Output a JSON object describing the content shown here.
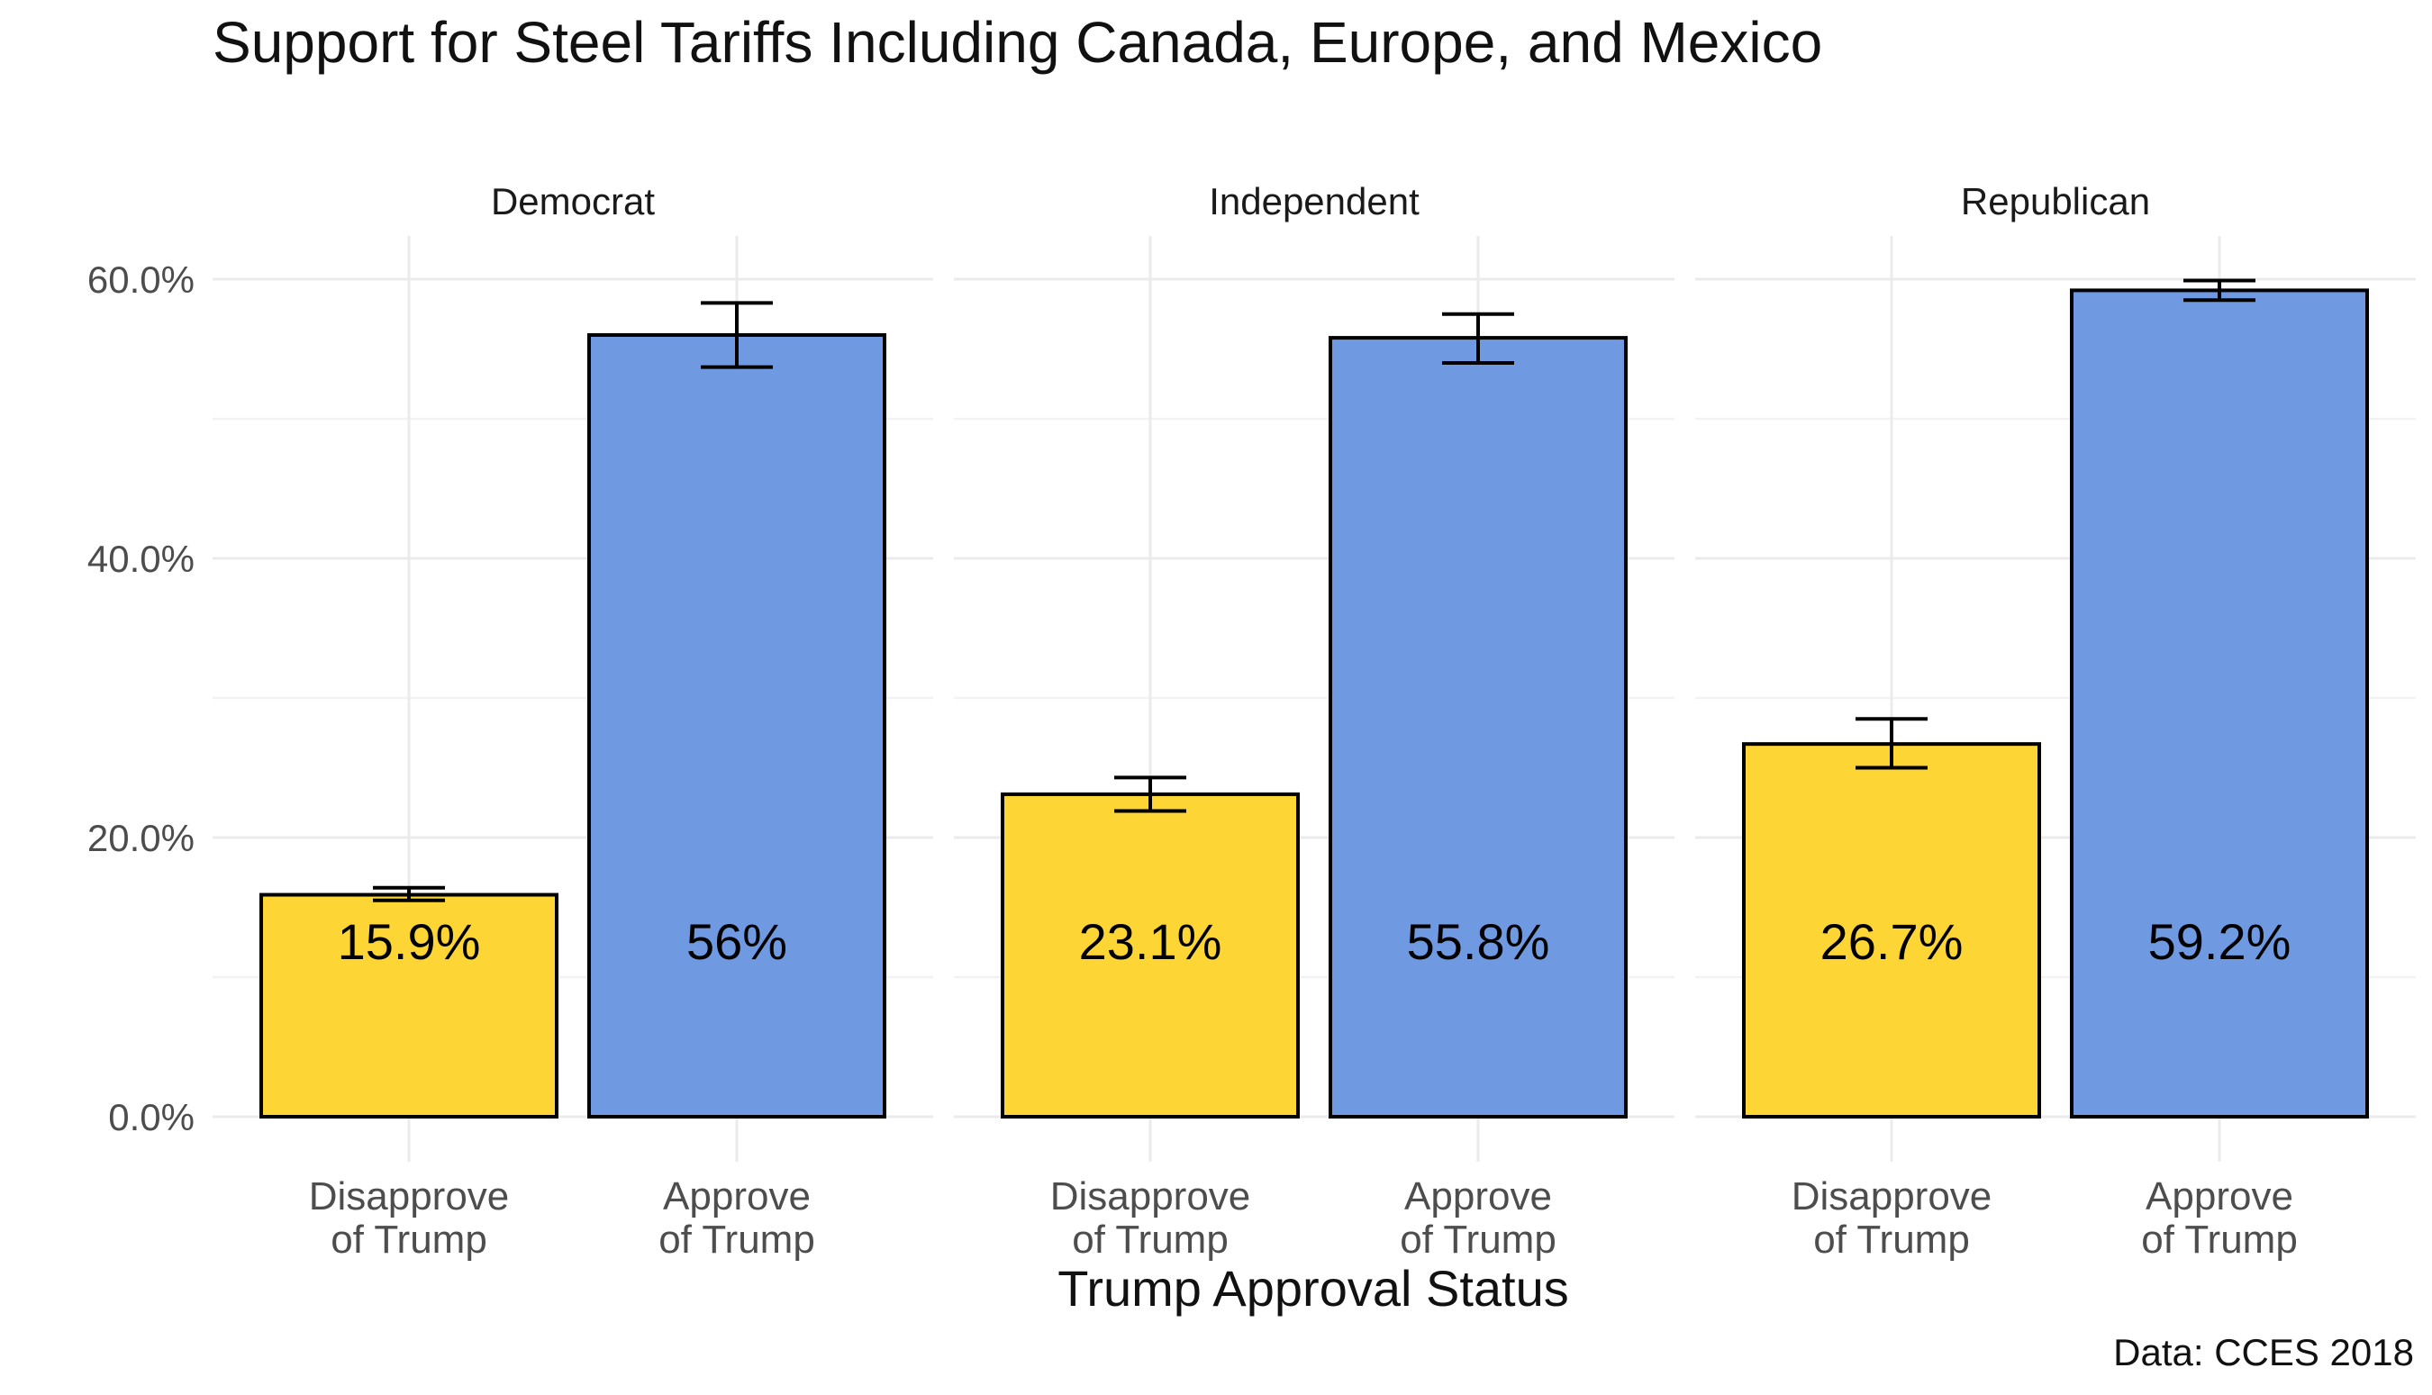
{
  "chart_data": {
    "type": "bar",
    "title": "Support for Steel Tariffs Including Canada, Europe, and Mexico",
    "xlabel": "Trump Approval Status",
    "ylabel": "",
    "caption": "Data: CCES 2018",
    "ylim": [
      0,
      60
    ],
    "y_ticks": [
      0,
      20,
      40,
      60
    ],
    "y_tick_labels": [
      "0.0%",
      "20.0%",
      "40.0%",
      "60.0%"
    ],
    "grid": true,
    "categories": [
      {
        "line1": "Disapprove",
        "line2": "of Trump"
      },
      {
        "line1": "Approve",
        "line2": "of Trump"
      }
    ],
    "colors": [
      "#FDD535",
      "#6F99E0"
    ],
    "facets": [
      {
        "name": "Democrat",
        "values": [
          15.9,
          56.0
        ],
        "labels": [
          "15.9%",
          "56%"
        ],
        "err_low": [
          15.5,
          53.7
        ],
        "err_high": [
          16.4,
          58.3
        ]
      },
      {
        "name": "Independent",
        "values": [
          23.1,
          55.8
        ],
        "labels": [
          "23.1%",
          "55.8%"
        ],
        "err_low": [
          21.9,
          54.0
        ],
        "err_high": [
          24.3,
          57.5
        ]
      },
      {
        "name": "Republican",
        "values": [
          26.7,
          59.2
        ],
        "labels": [
          "26.7%",
          "59.2%"
        ],
        "err_low": [
          25.0,
          58.5
        ],
        "err_high": [
          28.5,
          59.9
        ]
      }
    ]
  }
}
